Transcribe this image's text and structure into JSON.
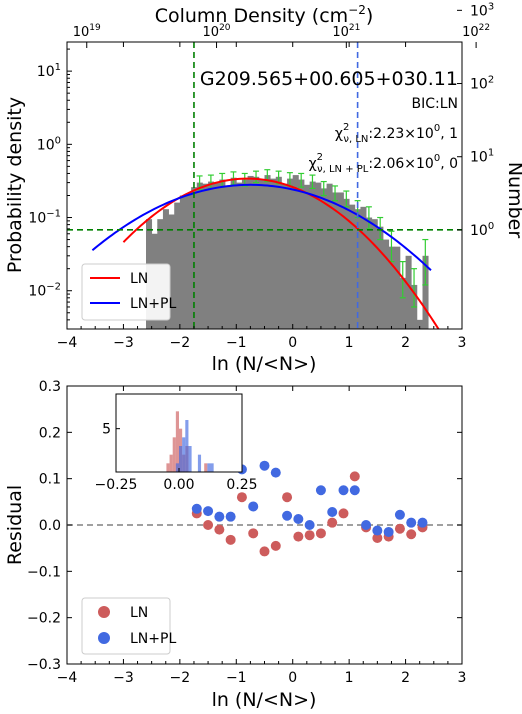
{
  "chart_data": [
    {
      "type": "bar",
      "panel": "top",
      "title": "G209.565+00.605+030.11",
      "xlabel": "ln (N/<N>)",
      "ylabel": "Probability density",
      "ylabel_right": "Number",
      "xlabel_top": "Column Density (cm$^{-2}$)",
      "xlim": [
        -4,
        3
      ],
      "ylim": [
        0.003,
        25
      ],
      "yscale": "log",
      "xticks": [
        "-4",
        "-3",
        "-2",
        "-1",
        "0",
        "1",
        "2",
        "3"
      ],
      "yticks": [
        {
          "value": 0.01,
          "base": "10",
          "exp": "-2"
        },
        {
          "value": 0.1,
          "base": "10",
          "exp": "-1"
        },
        {
          "value": 1,
          "base": "10",
          "exp": "0"
        },
        {
          "value": 10,
          "base": "10",
          "exp": "1"
        }
      ],
      "yticks_right": [
        {
          "value": 0.0677,
          "base": "10",
          "exp": "0"
        },
        {
          "value": 0.677,
          "base": "10",
          "exp": "1"
        },
        {
          "value": 6.77,
          "base": "10",
          "exp": "2"
        },
        {
          "value": 67.7,
          "base": "10",
          "exp": "3"
        }
      ],
      "xticks_top": [
        {
          "value": -3.65,
          "base": "10",
          "exp": "19"
        },
        {
          "value": -1.35,
          "base": "10",
          "exp": "20"
        },
        {
          "value": 0.95,
          "base": "10",
          "exp": "21"
        },
        {
          "value": 3.25,
          "base": "10",
          "exp": "22"
        }
      ],
      "annotations": {
        "bic": "BIC:LN",
        "chi_ln": {
          "main": "χ",
          "sup": "2",
          "sub": "ν, LN",
          "rest": ":2.23×10",
          "rest_sup": "0",
          "tail": ", 1"
        },
        "chi_lnpl": {
          "main": "χ",
          "sup": "2",
          "sub": "ν, LN + PL",
          "rest": ":2.06×10",
          "rest_sup": "0",
          "tail": ", 0"
        }
      },
      "bin_width": 0.1,
      "bins": [
        [
          -2.6,
          0.095
        ],
        [
          -2.5,
          0.06
        ],
        [
          -2.4,
          0.095
        ],
        [
          -2.3,
          0.13
        ],
        [
          -2.2,
          0.11
        ],
        [
          -2.1,
          0.16
        ],
        [
          -2.0,
          0.2
        ],
        [
          -1.9,
          0.21
        ],
        [
          -1.8,
          0.26
        ],
        [
          -1.7,
          0.3
        ],
        [
          -1.6,
          0.29
        ],
        [
          -1.5,
          0.31
        ],
        [
          -1.4,
          0.3
        ],
        [
          -1.3,
          0.33
        ],
        [
          -1.2,
          0.27
        ],
        [
          -1.1,
          0.35
        ],
        [
          -1.0,
          0.3
        ],
        [
          -0.9,
          0.33
        ],
        [
          -0.8,
          0.37
        ],
        [
          -0.7,
          0.36
        ],
        [
          -0.6,
          0.33
        ],
        [
          -0.5,
          0.38
        ],
        [
          -0.4,
          0.34
        ],
        [
          -0.3,
          0.36
        ],
        [
          -0.2,
          0.29
        ],
        [
          -0.1,
          0.34
        ],
        [
          0.0,
          0.38
        ],
        [
          0.1,
          0.33
        ],
        [
          0.2,
          0.28
        ],
        [
          0.3,
          0.31
        ],
        [
          0.4,
          0.3
        ],
        [
          0.5,
          0.25
        ],
        [
          0.6,
          0.29
        ],
        [
          0.7,
          0.22
        ],
        [
          0.8,
          0.22
        ],
        [
          0.9,
          0.18
        ],
        [
          1.0,
          0.15
        ],
        [
          1.1,
          0.13
        ],
        [
          1.2,
          0.14
        ],
        [
          1.3,
          0.1
        ],
        [
          1.4,
          0.095
        ],
        [
          1.5,
          0.075
        ],
        [
          1.6,
          0.05
        ],
        [
          1.7,
          0.04
        ],
        [
          1.8,
          0.04
        ],
        [
          1.9,
          0.015
        ],
        [
          2.0,
          0.03
        ],
        [
          2.1,
          0.012
        ],
        [
          2.2,
          0.004
        ],
        [
          2.3,
          0.03
        ]
      ],
      "error_bars": [
        [
          -1.7,
          0.24,
          0.37
        ],
        [
          -1.5,
          0.25,
          0.38
        ],
        [
          -1.3,
          0.26,
          0.4
        ],
        [
          -1.1,
          0.28,
          0.42
        ],
        [
          -0.9,
          0.27,
          0.4
        ],
        [
          -0.7,
          0.3,
          0.43
        ],
        [
          -0.5,
          0.31,
          0.45
        ],
        [
          -0.3,
          0.29,
          0.43
        ],
        [
          -0.1,
          0.27,
          0.41
        ],
        [
          0.1,
          0.26,
          0.4
        ],
        [
          0.3,
          0.25,
          0.38
        ],
        [
          0.5,
          0.2,
          0.31
        ],
        [
          0.7,
          0.17,
          0.27
        ],
        [
          0.9,
          0.14,
          0.23
        ],
        [
          1.1,
          0.1,
          0.17
        ],
        [
          1.3,
          0.07,
          0.14
        ],
        [
          1.5,
          0.05,
          0.1
        ],
        [
          1.7,
          0.025,
          0.065
        ],
        [
          1.9,
          0.008,
          0.025
        ],
        [
          2.1,
          0.006,
          0.02
        ],
        [
          2.3,
          0.012,
          0.05
        ]
      ],
      "vlines": [
        {
          "x": -1.75,
          "color": "#008000",
          "style": "dashed"
        },
        {
          "x": 1.15,
          "color": "#4169e1",
          "style": "dashed"
        }
      ],
      "hlines": [
        {
          "y": 0.068,
          "color": "#008000",
          "style": "dashed"
        }
      ],
      "series": [
        {
          "name": "LN",
          "color": "#ff0000",
          "model": "lognormal",
          "mu": -0.8,
          "sigma": 1.1,
          "amp": 0.34,
          "x_range": [
            -3.0,
            3.0
          ]
        },
        {
          "name": "LN+PL",
          "color": "#0000ff",
          "model": "lognormal",
          "mu": -0.75,
          "sigma": 1.38,
          "amp": 0.28,
          "x_range": [
            -3.55,
            2.45
          ]
        }
      ],
      "legend": "lower-left",
      "legend_entries": [
        {
          "label": "LN",
          "color": "#ff0000"
        },
        {
          "label": "LN+PL",
          "color": "#0000ff"
        }
      ]
    },
    {
      "type": "scatter",
      "panel": "bottom",
      "xlabel": "ln (N/<N>)",
      "ylabel": "Residual",
      "xlim": [
        -4,
        3
      ],
      "ylim": [
        -0.3,
        0.3
      ],
      "xticks": [
        "-4",
        "-3",
        "-2",
        "-1",
        "0",
        "1",
        "2",
        "3"
      ],
      "yticks": [
        "-0.3",
        "-0.2",
        "-0.1",
        "0.0",
        "0.1",
        "0.2",
        "0.3"
      ],
      "hline": {
        "y": 0,
        "color": "#808080",
        "style": "dashed"
      },
      "series": [
        {
          "name": "LN",
          "color": "#cd5c5c",
          "points": [
            [
              -1.7,
              0.025
            ],
            [
              -1.5,
              0.0
            ],
            [
              -1.3,
              -0.01
            ],
            [
              -1.1,
              -0.032
            ],
            [
              -0.9,
              0.06
            ],
            [
              -0.7,
              -0.018
            ],
            [
              -0.5,
              -0.057
            ],
            [
              -0.3,
              -0.045
            ],
            [
              -0.1,
              0.06
            ],
            [
              0.1,
              -0.025
            ],
            [
              0.3,
              -0.022
            ],
            [
              0.5,
              -0.018
            ],
            [
              0.7,
              0.005
            ],
            [
              0.9,
              0.025
            ],
            [
              1.1,
              0.105
            ],
            [
              1.3,
              -0.005
            ],
            [
              1.5,
              -0.028
            ],
            [
              1.7,
              -0.025
            ],
            [
              1.9,
              -0.008
            ],
            [
              2.1,
              -0.02
            ],
            [
              2.3,
              -0.005
            ]
          ]
        },
        {
          "name": "LN+PL",
          "color": "#4169e1",
          "points": [
            [
              -1.7,
              0.035
            ],
            [
              -1.5,
              0.03
            ],
            [
              -1.3,
              0.018
            ],
            [
              -1.1,
              0.018
            ],
            [
              -0.9,
              0.12
            ],
            [
              -0.7,
              0.04
            ],
            [
              -0.5,
              0.128
            ],
            [
              -0.3,
              0.113
            ],
            [
              -0.1,
              0.02
            ],
            [
              0.1,
              0.013
            ],
            [
              0.3,
              0.0
            ],
            [
              0.5,
              0.075
            ],
            [
              0.7,
              0.028
            ],
            [
              0.9,
              0.075
            ],
            [
              1.1,
              0.075
            ],
            [
              1.3,
              0.0
            ],
            [
              1.5,
              -0.012
            ],
            [
              1.7,
              -0.015
            ],
            [
              1.9,
              0.022
            ],
            [
              2.1,
              0.005
            ],
            [
              2.3,
              0.005
            ]
          ]
        }
      ],
      "legend": "lower-left",
      "legend_entries": [
        {
          "label": "LN",
          "color": "#cd5c5c"
        },
        {
          "label": "LN+PL",
          "color": "#4169e1"
        }
      ],
      "inset": {
        "type": "histogram",
        "xlim": [
          -0.25,
          0.25
        ],
        "ylim": [
          0,
          9
        ],
        "xticks": [
          "-0.25",
          "0.00",
          "0.25"
        ],
        "yticks": [
          "5"
        ],
        "bin_width": 0.0125,
        "series": [
          {
            "name": "LN",
            "color": "#cd5c5c",
            "bins": [
              [
                -0.05,
                1
              ],
              [
                -0.0375,
                2
              ],
              [
                -0.025,
                4
              ],
              [
                -0.0125,
                7
              ],
              [
                0.0,
                5
              ],
              [
                0.0125,
                2
              ],
              [
                0.025,
                3
              ],
              [
                0.1,
                1
              ]
            ]
          },
          {
            "name": "LN+PL",
            "color": "#4169e1",
            "bins": [
              [
                -0.0125,
                1
              ],
              [
                0.0,
                3
              ],
              [
                0.0125,
                4
              ],
              [
                0.025,
                6
              ],
              [
                0.0375,
                3
              ],
              [
                0.075,
                2
              ],
              [
                0.1125,
                1
              ],
              [
                0.125,
                1
              ]
            ]
          }
        ]
      }
    }
  ]
}
